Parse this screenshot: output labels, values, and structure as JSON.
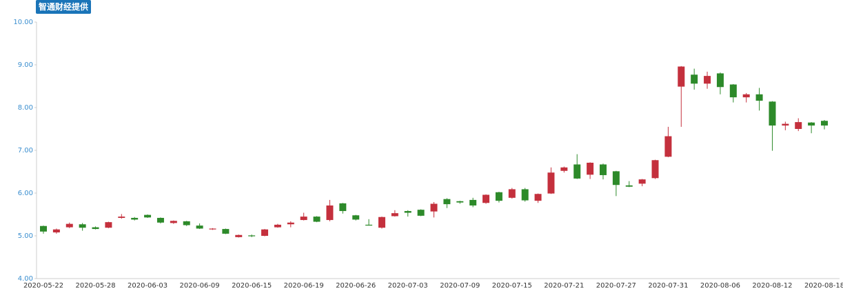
{
  "badge": "智通财经提供",
  "chart_data": {
    "type": "candlestick",
    "categories": [
      "2020-05-22",
      null,
      null,
      null,
      "2020-05-28",
      null,
      null,
      null,
      "2020-06-03",
      null,
      null,
      null,
      "2020-06-09",
      null,
      null,
      null,
      "2020-06-15",
      null,
      null,
      null,
      "2020-06-19",
      null,
      null,
      null,
      "2020-06-26",
      null,
      null,
      null,
      "2020-07-03",
      null,
      null,
      null,
      "2020-07-09",
      null,
      null,
      null,
      "2020-07-15",
      null,
      null,
      null,
      "2020-07-21",
      null,
      null,
      null,
      "2020-07-27",
      null,
      null,
      null,
      "2020-07-31",
      null,
      null,
      null,
      "2020-08-06",
      null,
      null,
      null,
      "2020-08-12",
      null,
      null,
      null,
      "2020-08-18"
    ],
    "open": [
      5.23,
      5.08,
      5.2,
      5.27,
      5.2,
      5.19,
      5.42,
      5.42,
      5.49,
      5.42,
      5.3,
      5.34,
      5.24,
      5.15,
      5.16,
      4.97,
      5.01,
      5.0,
      5.2,
      5.27,
      5.37,
      5.45,
      5.37,
      5.76,
      5.48,
      5.26,
      5.19,
      5.46,
      5.58,
      5.61,
      5.57,
      5.86,
      5.81,
      5.84,
      5.77,
      6.02,
      5.89,
      6.09,
      5.82,
      5.99,
      6.52,
      6.67,
      6.43,
      6.67,
      6.51,
      6.18,
      6.22,
      6.35,
      6.85,
      8.49,
      8.77,
      8.56,
      8.8,
      8.54,
      8.24,
      8.31,
      8.14,
      7.58,
      7.5,
      7.65,
      7.69
    ],
    "high": [
      5.24,
      5.17,
      5.31,
      5.3,
      5.22,
      5.33,
      5.51,
      5.44,
      5.5,
      5.43,
      5.36,
      5.35,
      5.29,
      5.18,
      5.17,
      5.03,
      5.03,
      5.16,
      5.28,
      5.34,
      5.54,
      5.46,
      5.84,
      5.77,
      5.49,
      5.39,
      5.45,
      5.6,
      5.6,
      5.62,
      5.79,
      5.88,
      5.82,
      5.89,
      5.97,
      6.03,
      6.12,
      6.12,
      5.99,
      6.6,
      6.62,
      6.91,
      6.72,
      6.69,
      6.52,
      6.28,
      6.33,
      6.78,
      7.55,
      8.97,
      8.91,
      8.84,
      8.82,
      8.55,
      8.34,
      8.46,
      8.15,
      7.67,
      7.75,
      7.66,
      7.71
    ],
    "low": [
      5.05,
      5.05,
      5.18,
      5.12,
      5.15,
      5.18,
      5.4,
      5.36,
      5.42,
      5.29,
      5.28,
      5.23,
      5.16,
      5.14,
      5.04,
      4.96,
      4.97,
      4.99,
      5.19,
      5.2,
      5.36,
      5.32,
      5.34,
      5.52,
      5.36,
      5.24,
      5.17,
      5.45,
      5.45,
      5.46,
      5.43,
      5.65,
      5.75,
      5.67,
      5.75,
      5.78,
      5.87,
      5.8,
      5.77,
      5.98,
      6.48,
      6.33,
      6.33,
      6.32,
      5.93,
      6.14,
      6.16,
      6.33,
      6.84,
      7.55,
      8.42,
      8.44,
      8.31,
      8.12,
      8.12,
      7.93,
      6.99,
      7.47,
      7.45,
      7.4,
      7.49
    ],
    "close": [
      5.1,
      5.15,
      5.28,
      5.19,
      5.16,
      5.32,
      5.45,
      5.38,
      5.43,
      5.31,
      5.35,
      5.25,
      5.17,
      5.17,
      5.05,
      5.02,
      4.99,
      5.15,
      5.26,
      5.31,
      5.45,
      5.33,
      5.71,
      5.58,
      5.38,
      5.24,
      5.44,
      5.53,
      5.54,
      5.47,
      5.75,
      5.74,
      5.78,
      5.71,
      5.96,
      5.82,
      6.09,
      5.83,
      5.98,
      6.48,
      6.6,
      6.34,
      6.71,
      6.42,
      6.19,
      6.15,
      6.32,
      6.77,
      7.33,
      8.96,
      8.56,
      8.74,
      8.48,
      8.24,
      8.31,
      8.16,
      7.58,
      7.62,
      7.66,
      7.58,
      7.58
    ],
    "up_color": "#c4303d",
    "down_color": "#2d8a2a",
    "ylim": [
      4,
      10
    ],
    "yticks": [
      {
        "value": 4,
        "label": "4.00"
      },
      {
        "value": 5,
        "label": "5.00"
      },
      {
        "value": 6,
        "label": "6.00"
      },
      {
        "value": 7,
        "label": "7.00"
      },
      {
        "value": 8,
        "label": "8.00"
      },
      {
        "value": 9,
        "label": "9.00"
      },
      {
        "value": 10,
        "label": "10.00"
      }
    ]
  }
}
